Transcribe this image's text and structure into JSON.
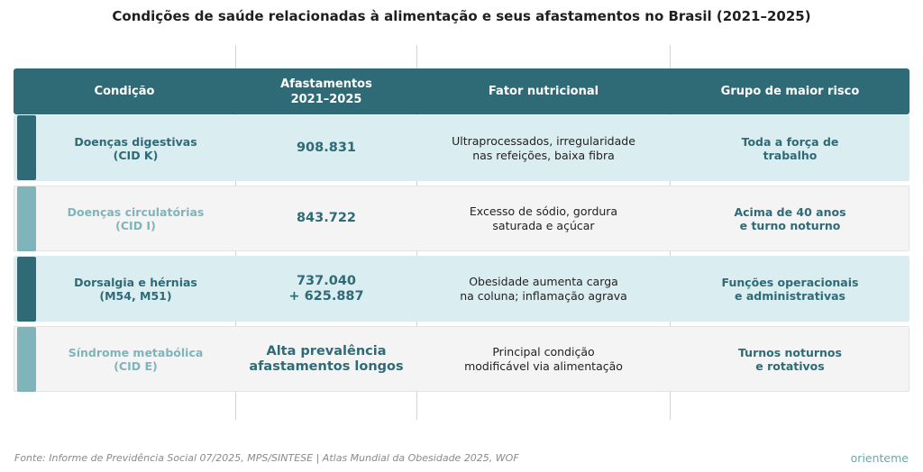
{
  "title": "Condições de saúde relacionadas à alimentação e seus afastamentos no Brasil (2021–2025)",
  "table": {
    "headers": [
      "Condição",
      "Afastamentos\n2021–2025",
      "Fator nutricional",
      "Grupo de maior risco"
    ],
    "rows": [
      {
        "condition": "Doenças digestivas\n(CID K)",
        "count": "908.831",
        "factor": "Ultraprocessados, irregularidade\nnas refeições, baixa fibra",
        "group": "Toda a força de\ntrabalho",
        "style": "dark"
      },
      {
        "condition": "Doenças circulatórias\n(CID I)",
        "count": "843.722",
        "factor": "Excesso de sódio, gordura\nsaturada e açúcar",
        "group": "Acima de 40 anos\ne turno noturno",
        "style": "light"
      },
      {
        "condition": "Dorsalgia e hérnias\n(M54, M51)",
        "count": "737.040\n+ 625.887",
        "factor": "Obesidade aumenta carga\nna coluna; inflamação agrava",
        "group": "Funções operacionais\ne administrativas",
        "style": "dark"
      },
      {
        "condition": "Síndrome metabólica\n(CID E)",
        "count": "Alta prevalência\nafastamentos longos",
        "factor": "Principal condição\nmodificável via alimentação",
        "group": "Turnos noturnos\ne rotativos",
        "style": "light"
      }
    ]
  },
  "colors": {
    "header": "#2e6b76",
    "accent_dark": "#2e6b76",
    "accent_light": "#7fb4ba",
    "row_dark": "#daedf1",
    "row_light": "#f4f4f4"
  },
  "footer": {
    "source": "Fonte: Informe de Previdência Social 07/2025, MPS/SINTESE | Atlas Mundial da Obesidade 2025, WOF",
    "brand": "orienteme"
  }
}
